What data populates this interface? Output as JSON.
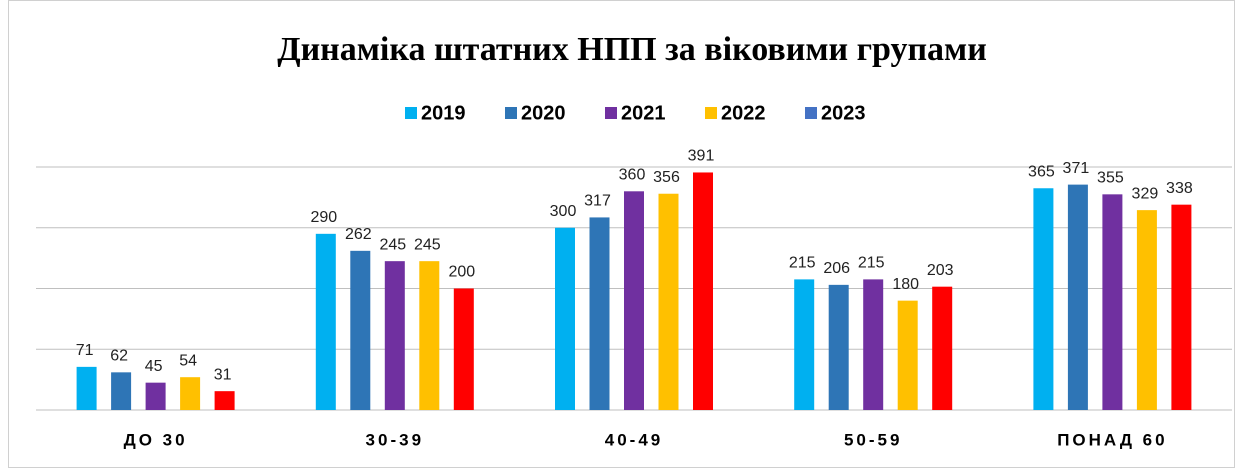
{
  "chart_data": {
    "type": "bar",
    "title": "Динаміка штатних НПП за віковими групами",
    "categories": [
      "ДО 30",
      "30-39",
      "40-49",
      "50-59",
      "ПОНАД 60"
    ],
    "series": [
      {
        "name": "2019",
        "color": "#00b0f0",
        "values": [
          71,
          290,
          300,
          215,
          365
        ]
      },
      {
        "name": "2020",
        "color": "#2e75b6",
        "values": [
          62,
          262,
          317,
          206,
          371
        ]
      },
      {
        "name": "2021",
        "color": "#7030a0",
        "values": [
          45,
          245,
          360,
          215,
          355
        ]
      },
      {
        "name": "2022",
        "color": "#ffc000",
        "values": [
          54,
          245,
          356,
          180,
          329
        ]
      },
      {
        "name": "2023",
        "color": "#ff0000",
        "legend_color": "#4472c4",
        "values": [
          31,
          200,
          391,
          203,
          338
        ]
      }
    ],
    "ylim": [
      0,
      400
    ],
    "yticks": [
      0,
      100,
      200,
      300,
      400
    ],
    "grid": true,
    "legend": "top"
  }
}
